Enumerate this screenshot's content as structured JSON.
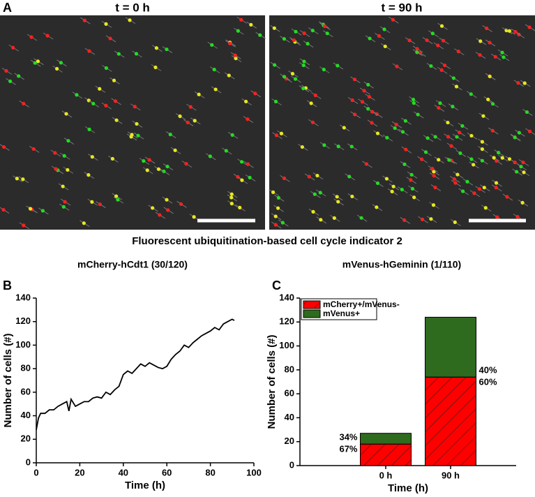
{
  "panel_a": {
    "label": "A",
    "images": [
      {
        "title": "t = 0 h"
      },
      {
        "title": "t = 90 h"
      }
    ],
    "caption": "Fluorescent ubiquitination-based cell cycle indicator 2",
    "markers": [
      {
        "text": "mCherry-hCdt1 (30/120)",
        "color": "#ff1a1a"
      },
      {
        "text": "mVenus-hGeminin (1/110)",
        "color": "#2e7d1e"
      }
    ]
  },
  "chart_data": [
    {
      "panel": "B",
      "type": "line",
      "xlabel": "Time (h)",
      "ylabel": "Number of cells (#)",
      "color": "#000000",
      "x": [
        0,
        1,
        2,
        4,
        6,
        8,
        10,
        12,
        14,
        15,
        16,
        18,
        20,
        22,
        24,
        26,
        28,
        30,
        32,
        34,
        36,
        38,
        40,
        42,
        44,
        46,
        48,
        50,
        52,
        54,
        56,
        58,
        60,
        62,
        64,
        66,
        68,
        70,
        72,
        74,
        76,
        78,
        80,
        82,
        84,
        86,
        88,
        90,
        91
      ],
      "values": [
        28,
        38,
        42,
        42,
        45,
        45,
        48,
        50,
        52,
        44,
        54,
        48,
        50,
        52,
        52,
        55,
        56,
        55,
        60,
        58,
        62,
        65,
        75,
        78,
        76,
        80,
        84,
        82,
        85,
        83,
        81,
        80,
        82,
        88,
        92,
        95,
        100,
        98,
        102,
        105,
        108,
        110,
        112,
        115,
        113,
        118,
        120,
        122,
        121
      ],
      "xlim": [
        0,
        100
      ],
      "xticks": [
        0,
        20,
        40,
        60,
        80,
        100
      ],
      "ylim": [
        0,
        140
      ],
      "yticks": [
        0,
        20,
        40,
        60,
        80,
        100,
        120,
        140
      ]
    },
    {
      "panel": "C",
      "type": "stacked_bar",
      "xlabel": "Time (h)",
      "ylabel": "Number of cells (#)",
      "categories": [
        "0 h",
        "90 h"
      ],
      "series": [
        {
          "name": "mCherry+/mVenus-",
          "color": "#ff0000",
          "hatch": true,
          "values": [
            18,
            74
          ]
        },
        {
          "name": "mVenus+",
          "color": "#2e6b1f",
          "hatch": false,
          "values": [
            9,
            50
          ]
        }
      ],
      "annotations": [
        [
          "34%",
          "67%"
        ],
        [
          "40%",
          "60%"
        ]
      ],
      "ylim": [
        0,
        140
      ],
      "yticks": [
        0,
        20,
        40,
        60,
        80,
        100,
        120,
        140
      ]
    }
  ]
}
